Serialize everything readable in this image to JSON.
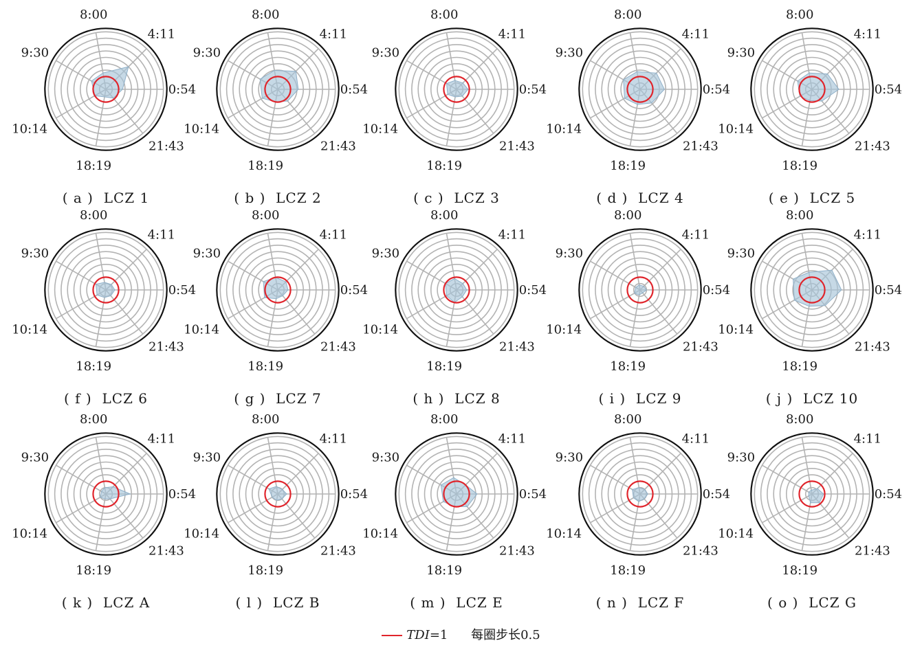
{
  "chart_data": {
    "type": "radar",
    "ring_step": 0.5,
    "rings": 9,
    "reference_line": {
      "label": "TDI=1",
      "value": 1,
      "color": "#e0242b"
    },
    "fill_color": "#a8c4d9",
    "axes": [
      "0:54",
      "4:11",
      "8:00",
      "9:30",
      "10:14",
      "18:19",
      "21:43"
    ],
    "axis_angles_deg": [
      0,
      45,
      100,
      150,
      210,
      260,
      310
    ],
    "panels": [
      {
        "caption": "( a )  LCZ 1",
        "values": [
          1.3,
          2.5,
          1.3,
          1.3,
          1.0,
          0.6,
          0.9
        ]
      },
      {
        "caption": "( b )  LCZ 2",
        "values": [
          1.6,
          2.0,
          1.5,
          1.6,
          1.4,
          1.0,
          1.2
        ]
      },
      {
        "caption": "( c )  LCZ 3",
        "values": [
          0.9,
          0.7,
          0.7,
          0.9,
          0.8,
          0.6,
          0.7
        ]
      },
      {
        "caption": "( d )  LCZ 4",
        "values": [
          1.9,
          1.8,
          1.4,
          1.5,
          1.4,
          1.2,
          1.4
        ]
      },
      {
        "caption": "( e )  LCZ 5",
        "values": [
          2.1,
          1.7,
          1.3,
          1.3,
          1.1,
          0.9,
          1.2
        ]
      },
      {
        "caption": "( f )  LCZ 6",
        "values": [
          0.7,
          0.6,
          0.6,
          0.9,
          0.8,
          0.6,
          0.6
        ]
      },
      {
        "caption": "( g )  LCZ 7",
        "values": [
          0.8,
          0.9,
          1.0,
          1.3,
          1.2,
          0.7,
          0.6
        ]
      },
      {
        "caption": "( h )  LCZ 8",
        "values": [
          0.8,
          0.7,
          0.9,
          1.0,
          0.9,
          1.0,
          0.7
        ]
      },
      {
        "caption": "( i )  LCZ 9",
        "values": [
          0.5,
          0.4,
          0.4,
          0.4,
          0.5,
          0.4,
          0.3
        ]
      },
      {
        "caption": "( j )  LCZ 10",
        "values": [
          2.3,
          2.2,
          1.4,
          1.7,
          1.6,
          1.3,
          1.6
        ]
      },
      {
        "caption": "( k )  LCZ A",
        "values": [
          1.9,
          0.8,
          0.5,
          0.4,
          0.5,
          0.4,
          0.5
        ]
      },
      {
        "caption": "( l )  LCZ B",
        "values": [
          0.7,
          0.5,
          0.6,
          0.8,
          0.5,
          0.5,
          0.5
        ]
      },
      {
        "caption": "( m )  LCZ E",
        "values": [
          1.6,
          1.0,
          1.3,
          1.4,
          1.2,
          1.0,
          1.3
        ]
      },
      {
        "caption": "( n )  LCZ F",
        "values": [
          0.6,
          0.5,
          0.5,
          0.7,
          0.6,
          0.6,
          0.5
        ]
      },
      {
        "caption": "( o )  LCZ G",
        "values": [
          0.9,
          0.6,
          0.3,
          0.3,
          0.3,
          0.7,
          0.9
        ]
      }
    ]
  },
  "legend": {
    "tdi_label": "TDI",
    "tdi_value": "=1",
    "step_text": "每圈步长0.5"
  }
}
